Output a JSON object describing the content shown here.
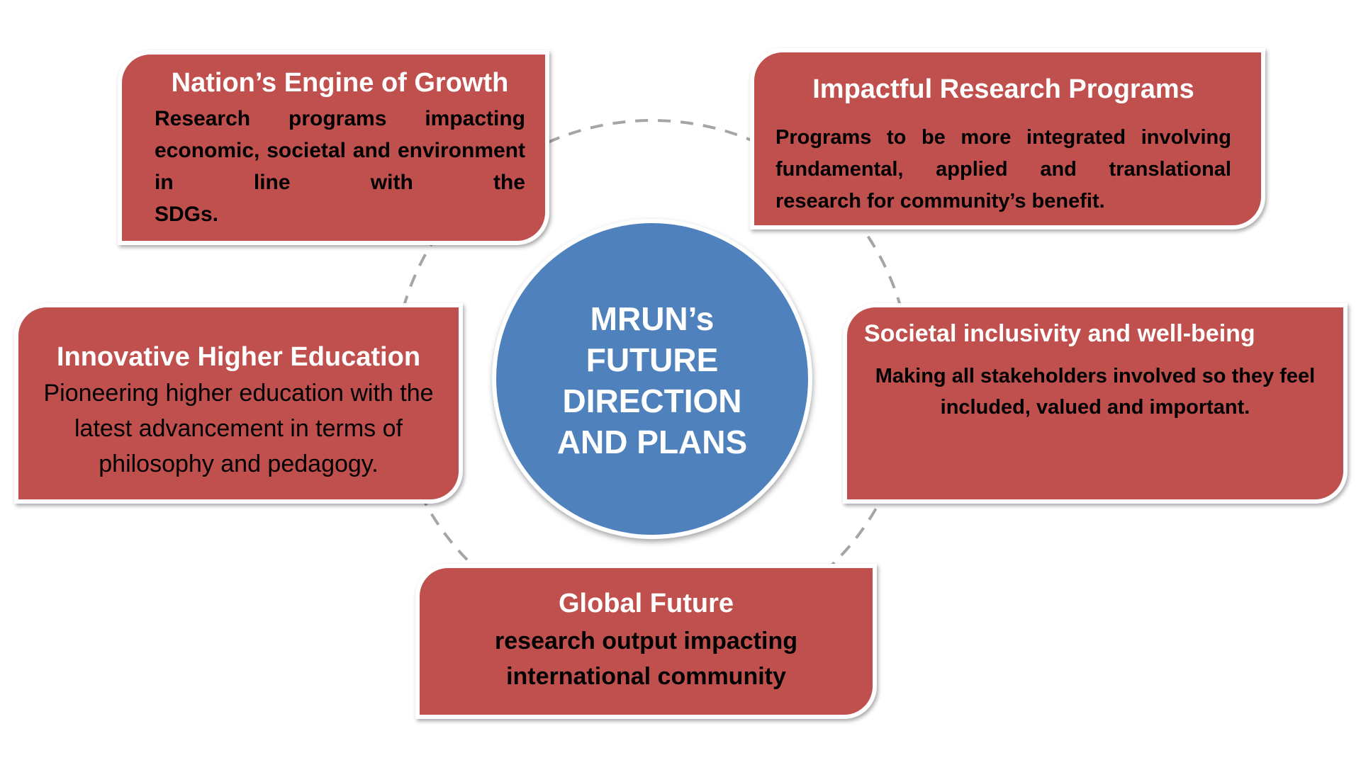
{
  "center": {
    "text": "MRUN’s\nFUTURE\nDIRECTION\nAND PLANS",
    "color": "#4f81bd"
  },
  "cards": {
    "nation": {
      "title": "Nation’s Engine of Growth",
      "body": "Research programs impacting economic, societal and environment in line with the",
      "body_last": "SDGs."
    },
    "impact": {
      "title": "Impactful Research Programs",
      "body": "Programs to be more integrated involving fundamental, applied and translational",
      "body_last": "research for community’s benefit."
    },
    "innov": {
      "title": "Innovative Higher Education",
      "body": "Pioneering higher education with the latest advancement in terms of philosophy and pedagogy."
    },
    "societal": {
      "title": "Societal inclusivity and well-being",
      "body": "Making all stakeholders involved so they feel included, valued and important."
    },
    "global": {
      "title": "Global Future",
      "body": "research output impacting international community"
    }
  },
  "colors": {
    "card_fill": "#c0504d",
    "ring": "#a5a5a5"
  }
}
